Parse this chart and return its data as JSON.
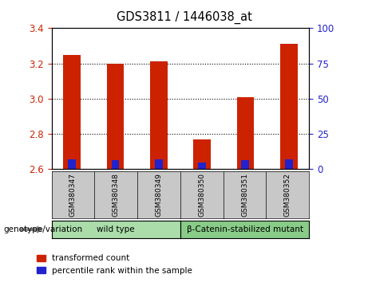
{
  "title": "GDS3811 / 1446038_at",
  "samples": [
    "GSM380347",
    "GSM380348",
    "GSM380349",
    "GSM380350",
    "GSM380351",
    "GSM380352"
  ],
  "transformed_counts": [
    3.25,
    3.2,
    3.21,
    2.77,
    3.01,
    3.31
  ],
  "percentile_ranks": [
    7.0,
    6.5,
    7.0,
    5.0,
    6.5,
    7.0
  ],
  "base_value": 2.6,
  "ylim_left": [
    2.6,
    3.4
  ],
  "ylim_right": [
    0,
    100
  ],
  "yticks_left": [
    2.6,
    2.8,
    3.0,
    3.2,
    3.4
  ],
  "yticks_right": [
    0,
    25,
    50,
    75,
    100
  ],
  "bar_color_red": "#cc2200",
  "bar_color_blue": "#2222cc",
  "groups": [
    {
      "label": "wild type",
      "indices": [
        0,
        1,
        2
      ],
      "color": "#aaddaa"
    },
    {
      "label": "β-Catenin-stabilized mutant",
      "indices": [
        3,
        4,
        5
      ],
      "color": "#88cc88"
    }
  ],
  "genotype_label": "genotype/variation",
  "legend_red": "transformed count",
  "legend_blue": "percentile rank within the sample",
  "plot_bg": "#ffffff",
  "tick_label_color_left": "#cc2200",
  "tick_label_color_right": "#2222cc",
  "sample_label_bg": "#c8c8c8",
  "dotted_grid_vals": [
    2.8,
    3.0,
    3.2
  ]
}
